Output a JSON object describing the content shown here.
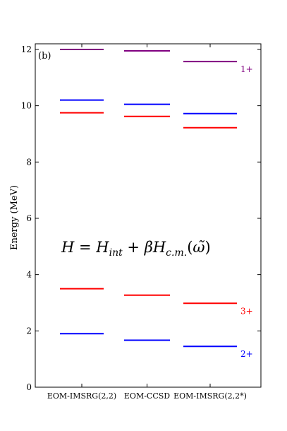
{
  "chart_data": {
    "type": "energy-level",
    "panel_label": "(b)",
    "ylabel": "Energy (MeV)",
    "ylim": [
      0,
      12.2
    ],
    "yticks": [
      0,
      2,
      4,
      6,
      8,
      10,
      12
    ],
    "methods": [
      "EOM-IMSRG(2,2)",
      "EOM-CCSD",
      "EOM-IMSRG(2,2*)"
    ],
    "series": [
      {
        "name": "1+",
        "color": "#800080",
        "values": [
          12.0,
          11.95,
          11.57
        ]
      },
      {
        "name": "",
        "color": "#0000ff",
        "values": [
          10.2,
          10.05,
          9.72
        ]
      },
      {
        "name": "",
        "color": "#ff0000",
        "values": [
          9.75,
          9.62,
          9.22
        ]
      },
      {
        "name": "3+",
        "color": "#ff0000",
        "values": [
          3.5,
          3.27,
          2.98
        ]
      },
      {
        "name": "2+",
        "color": "#0000ff",
        "values": [
          1.9,
          1.67,
          1.45
        ]
      }
    ],
    "annotation": {
      "H": "H",
      "eq": " = ",
      "H2": "H",
      "sub_int": "int",
      "plus": " + ",
      "beta": "β",
      "H3": "H",
      "sub_cm": "c.m.",
      "open": "(",
      "omega": "ω̃",
      "close": ")"
    }
  }
}
